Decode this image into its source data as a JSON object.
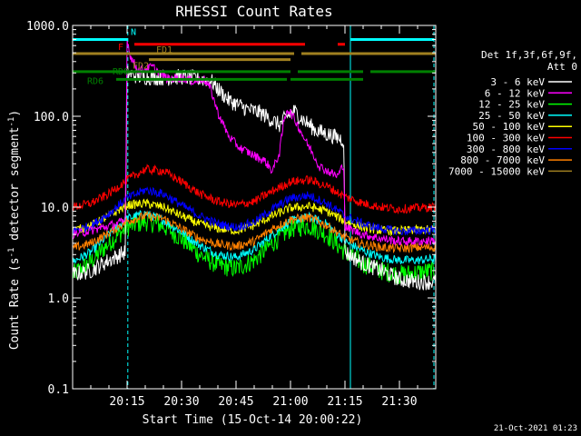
{
  "chart_data": {
    "type": "line",
    "title": "RHESSI Count Rates",
    "xlabel": "Start Time (15-Oct-14 20:00:22)",
    "ylabel_main": "Count Rate (s",
    "ylabel_sup1": "-1",
    "ylabel_mid": " detector segment",
    "ylabel_sup2": "-1",
    "ylabel_end": ")",
    "y_scale": "log",
    "ylim": [
      0.1,
      1000
    ],
    "xlim_minutes": [
      0,
      100
    ],
    "x_ticks": [
      {
        "label": "20:15",
        "min": 15
      },
      {
        "label": "20:30",
        "min": 30
      },
      {
        "label": "20:45",
        "min": 45
      },
      {
        "label": "21:00",
        "min": 60
      },
      {
        "label": "21:15",
        "min": 75
      },
      {
        "label": "21:30",
        "min": 90
      }
    ],
    "y_ticks": [
      {
        "label": "0.1",
        "value": 0.1
      },
      {
        "label": "1.0",
        "value": 1
      },
      {
        "label": "10.0",
        "value": 10
      },
      {
        "label": "100.0",
        "value": 100
      },
      {
        "label": "1000.0",
        "value": 1000
      }
    ],
    "legend_header": [
      "Det 1f,3f,6f,9f,",
      "Att 0"
    ],
    "legend_placement": "right",
    "series": [
      {
        "name": "3 - 6 keV",
        "color": "#ffffff",
        "points": [
          [
            0,
            1.8
          ],
          [
            5,
            2.0
          ],
          [
            10,
            2.6
          ],
          [
            14.5,
            3.2
          ],
          [
            15,
            300
          ],
          [
            18,
            275
          ],
          [
            22,
            268
          ],
          [
            26,
            265
          ],
          [
            30,
            272
          ],
          [
            34,
            262
          ],
          [
            38,
            250
          ],
          [
            40,
            200
          ],
          [
            43,
            150
          ],
          [
            48,
            120
          ],
          [
            52,
            108
          ],
          [
            55,
            90
          ],
          [
            57,
            80
          ],
          [
            59,
            100
          ],
          [
            61,
            115
          ],
          [
            63,
            95
          ],
          [
            67,
            70
          ],
          [
            71,
            62
          ],
          [
            73,
            58
          ],
          [
            74.7,
            55
          ],
          [
            75,
            3.2
          ],
          [
            80,
            2.4
          ],
          [
            85,
            2.0
          ],
          [
            90,
            1.6
          ],
          [
            95,
            1.5
          ],
          [
            100,
            1.5
          ]
        ]
      },
      {
        "name": "6 - 12 keV",
        "color": "#ff00ff",
        "points": [
          [
            0,
            5.0
          ],
          [
            5,
            5.5
          ],
          [
            10,
            6.2
          ],
          [
            14.5,
            7.0
          ],
          [
            15,
            700
          ],
          [
            16,
            450
          ],
          [
            18,
            320
          ],
          [
            22,
            350
          ],
          [
            26,
            260
          ],
          [
            30,
            265
          ],
          [
            34,
            240
          ],
          [
            36,
            260
          ],
          [
            38,
            200
          ],
          [
            40,
            110
          ],
          [
            43,
            60
          ],
          [
            46,
            45
          ],
          [
            50,
            37
          ],
          [
            53,
            32
          ],
          [
            55,
            25
          ],
          [
            57,
            40
          ],
          [
            58,
            80
          ],
          [
            59,
            120
          ],
          [
            60,
            110
          ],
          [
            62,
            80
          ],
          [
            64,
            55
          ],
          [
            66,
            40
          ],
          [
            68,
            28
          ],
          [
            71,
            24
          ],
          [
            73,
            22
          ],
          [
            74.7,
            30
          ],
          [
            75,
            6.0
          ],
          [
            80,
            5.0
          ],
          [
            85,
            4.5
          ],
          [
            90,
            4.2
          ],
          [
            95,
            4.2
          ],
          [
            100,
            4.3
          ]
        ]
      },
      {
        "name": "12 - 25 keV",
        "color": "#00ff00",
        "points": [
          [
            0,
            1.8
          ],
          [
            5,
            2.5
          ],
          [
            10,
            4.0
          ],
          [
            15,
            6.0
          ],
          [
            20,
            7.0
          ],
          [
            25,
            6.2
          ],
          [
            30,
            4.5
          ],
          [
            35,
            3.0
          ],
          [
            40,
            2.3
          ],
          [
            45,
            2.1
          ],
          [
            50,
            2.6
          ],
          [
            55,
            4.0
          ],
          [
            60,
            5.8
          ],
          [
            65,
            6.3
          ],
          [
            70,
            5.0
          ],
          [
            75,
            3.2
          ],
          [
            80,
            2.4
          ],
          [
            85,
            2.0
          ],
          [
            90,
            1.8
          ],
          [
            95,
            1.9
          ],
          [
            100,
            2.0
          ]
        ]
      },
      {
        "name": "25 - 50 keV",
        "color": "#00ffff",
        "points": [
          [
            0,
            2.5
          ],
          [
            5,
            3.2
          ],
          [
            10,
            5.0
          ],
          [
            15,
            7.5
          ],
          [
            20,
            8.5
          ],
          [
            25,
            7.2
          ],
          [
            30,
            5.3
          ],
          [
            35,
            3.8
          ],
          [
            40,
            3.0
          ],
          [
            45,
            2.8
          ],
          [
            50,
            3.4
          ],
          [
            55,
            5.0
          ],
          [
            60,
            7.0
          ],
          [
            65,
            7.8
          ],
          [
            70,
            6.5
          ],
          [
            75,
            4.2
          ],
          [
            80,
            3.3
          ],
          [
            85,
            2.8
          ],
          [
            90,
            2.6
          ],
          [
            95,
            2.6
          ],
          [
            100,
            2.7
          ]
        ]
      },
      {
        "name": "50 - 100 keV",
        "color": "#ffff00",
        "points": [
          [
            0,
            5.5
          ],
          [
            5,
            6.2
          ],
          [
            10,
            8.0
          ],
          [
            15,
            10.5
          ],
          [
            20,
            11.0
          ],
          [
            25,
            10.0
          ],
          [
            30,
            8.0
          ],
          [
            35,
            6.5
          ],
          [
            40,
            5.8
          ],
          [
            45,
            5.5
          ],
          [
            50,
            6.3
          ],
          [
            55,
            8.0
          ],
          [
            60,
            9.8
          ],
          [
            65,
            10.2
          ],
          [
            70,
            9.0
          ],
          [
            75,
            7.0
          ],
          [
            80,
            6.0
          ],
          [
            85,
            5.5
          ],
          [
            90,
            5.5
          ],
          [
            95,
            5.6
          ],
          [
            100,
            5.7
          ]
        ]
      },
      {
        "name": "100 - 300 keV",
        "color": "#ff0000",
        "points": [
          [
            0,
            10.0
          ],
          [
            5,
            11.0
          ],
          [
            10,
            14.0
          ],
          [
            15,
            20.0
          ],
          [
            20,
            26.0
          ],
          [
            25,
            25.0
          ],
          [
            30,
            19.0
          ],
          [
            35,
            14.0
          ],
          [
            40,
            11.5
          ],
          [
            45,
            10.5
          ],
          [
            50,
            11.5
          ],
          [
            55,
            15.0
          ],
          [
            60,
            19.0
          ],
          [
            65,
            20.0
          ],
          [
            70,
            17.0
          ],
          [
            75,
            13.0
          ],
          [
            80,
            11.0
          ],
          [
            85,
            10.0
          ],
          [
            90,
            9.5
          ],
          [
            95,
            9.8
          ],
          [
            100,
            10.0
          ]
        ]
      },
      {
        "name": "300 - 800 keV",
        "color": "#0000ff",
        "points": [
          [
            0,
            5.5
          ],
          [
            5,
            6.2
          ],
          [
            10,
            8.5
          ],
          [
            15,
            12.5
          ],
          [
            20,
            15.5
          ],
          [
            25,
            14.0
          ],
          [
            30,
            10.5
          ],
          [
            35,
            8.0
          ],
          [
            40,
            6.5
          ],
          [
            45,
            6.0
          ],
          [
            50,
            6.8
          ],
          [
            55,
            9.5
          ],
          [
            60,
            12.5
          ],
          [
            65,
            13.5
          ],
          [
            70,
            11.0
          ],
          [
            75,
            8.0
          ],
          [
            80,
            6.5
          ],
          [
            85,
            5.8
          ],
          [
            90,
            5.4
          ],
          [
            95,
            5.5
          ],
          [
            100,
            5.6
          ]
        ]
      },
      {
        "name": "800 - 7000 keV",
        "color": "#ff8000",
        "points": [
          [
            0,
            3.5
          ],
          [
            5,
            4.0
          ],
          [
            10,
            5.2
          ],
          [
            15,
            7.0
          ],
          [
            20,
            8.0
          ],
          [
            25,
            7.5
          ],
          [
            30,
            5.8
          ],
          [
            35,
            4.5
          ],
          [
            40,
            3.9
          ],
          [
            45,
            3.7
          ],
          [
            50,
            4.2
          ],
          [
            55,
            5.8
          ],
          [
            60,
            7.3
          ],
          [
            65,
            7.7
          ],
          [
            70,
            6.3
          ],
          [
            75,
            4.6
          ],
          [
            80,
            3.9
          ],
          [
            85,
            3.6
          ],
          [
            90,
            3.5
          ],
          [
            95,
            3.6
          ],
          [
            100,
            3.6
          ]
        ]
      },
      {
        "name": "7000 - 15000 keV",
        "color": "#a08020",
        "points": []
      }
    ],
    "vertical_lines": [
      {
        "min": 0,
        "color": "#00ffff",
        "style": "solid"
      },
      {
        "min": 15.2,
        "color": "#00ffff",
        "style": "dashed"
      },
      {
        "min": 76.5,
        "color": "#00ffff",
        "style": "solid"
      },
      {
        "min": 99.5,
        "color": "#00ffff",
        "style": "dashed"
      }
    ],
    "flag_bars": [
      {
        "label": "N",
        "color": "#00ffff",
        "value": 700,
        "segments": [
          [
            0,
            15.2
          ],
          [
            76.5,
            99.5
          ]
        ]
      },
      {
        "label": "F",
        "color": "#ff0000",
        "value": 620,
        "segments": [
          [
            17,
            64
          ],
          [
            73,
            75
          ]
        ]
      },
      {
        "label": "FD1",
        "color": "#a08020",
        "value": 490,
        "segments": [
          [
            0,
            100
          ]
        ],
        "gap": [
          61,
          63
        ]
      },
      {
        "label": "FD2",
        "color": "#a08020",
        "value": 420,
        "segments": [
          [
            21,
            60
          ]
        ]
      },
      {
        "label": "RD0",
        "color": "#008000",
        "value": 310,
        "segments": [
          [
            0,
            60
          ],
          [
            62,
            80
          ],
          [
            82,
            100
          ]
        ]
      },
      {
        "label": "RD6",
        "color": "#008000",
        "value": 255,
        "segments": [
          [
            12,
            59
          ],
          [
            60,
            80
          ]
        ]
      }
    ]
  },
  "footer_timestamp": "21-Oct-2021 01:23"
}
